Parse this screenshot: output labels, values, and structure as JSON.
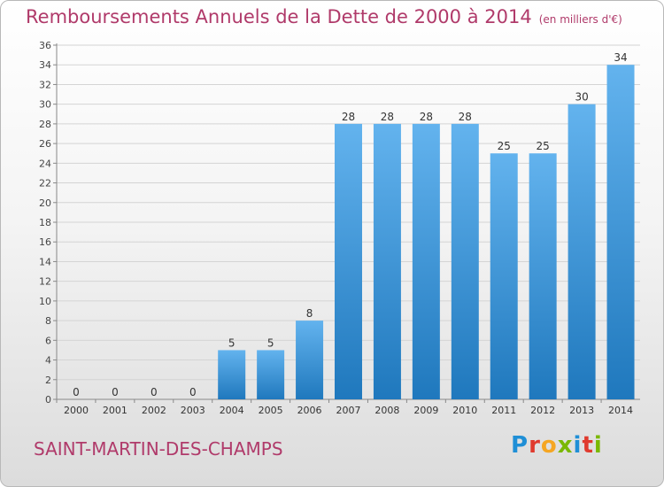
{
  "title": "Remboursements Annuels de la Dette de 2000 à 2014",
  "subtitle": "(en milliers d'€)",
  "commune": "SAINT-MARTIN-DES-CHAMPS",
  "logo": {
    "text": "Proxiti",
    "colors": [
      "#1f8fd6",
      "#e03a2e",
      "#f5a623",
      "#7ab800",
      "#1f8fd6",
      "#e03a2e",
      "#7ab800"
    ]
  },
  "colors": {
    "bar_top": "#63b3ee",
    "bar_bottom": "#1f78bd",
    "title": "#b03a6a"
  },
  "chart_data": {
    "type": "bar",
    "categories": [
      "2000",
      "2001",
      "2002",
      "2003",
      "2004",
      "2005",
      "2006",
      "2007",
      "2008",
      "2009",
      "2010",
      "2011",
      "2012",
      "2013",
      "2014"
    ],
    "values": [
      0,
      0,
      0,
      0,
      5,
      5,
      8,
      28,
      28,
      28,
      28,
      25,
      25,
      30,
      34
    ],
    "y_ticks": [
      0,
      2,
      4,
      6,
      8,
      10,
      12,
      14,
      16,
      18,
      20,
      22,
      24,
      26,
      28,
      30,
      32,
      34,
      36
    ],
    "ylim": [
      0,
      36
    ],
    "grid": true,
    "legend": "none"
  }
}
